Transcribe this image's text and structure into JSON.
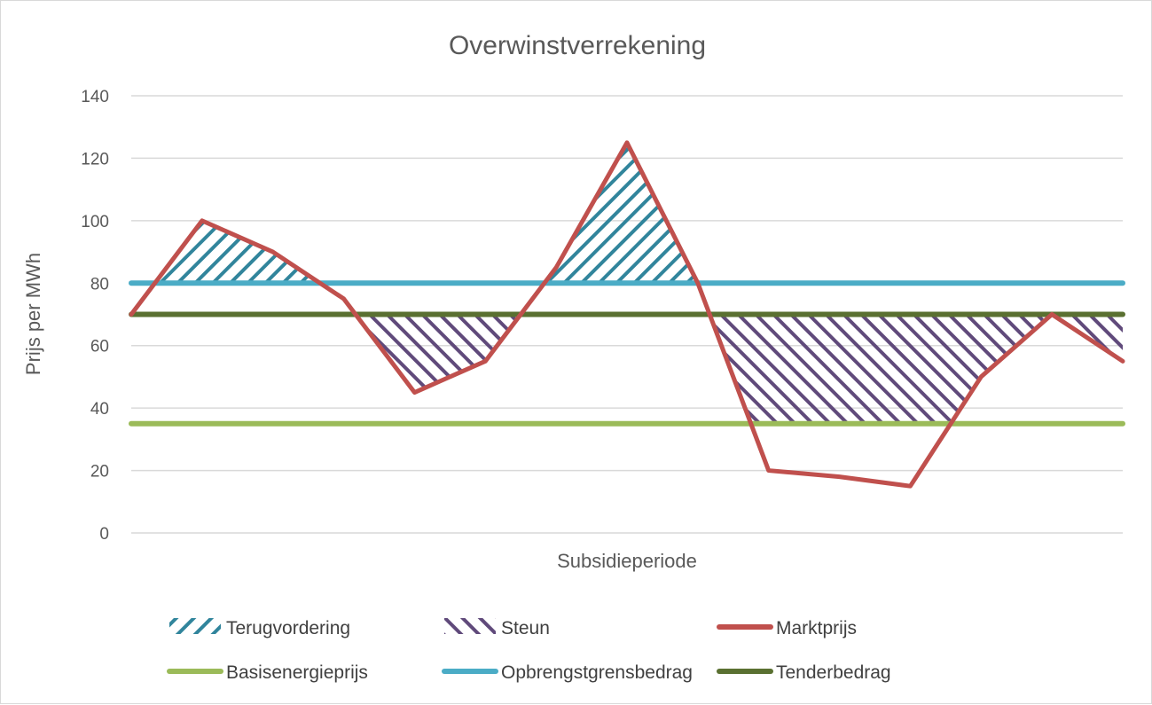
{
  "chart_data": {
    "type": "line",
    "title": "Overwinstverrekening",
    "xlabel": "Subsidieperiode",
    "ylabel": "Prijs per MWh",
    "ylim": [
      0,
      140
    ],
    "yticks": [
      0,
      20,
      40,
      60,
      80,
      100,
      120,
      140
    ],
    "grid": true,
    "legend_position": "bottom",
    "series": [
      {
        "name": "Marktprijs",
        "color": "#c0504d",
        "values": [
          70,
          100,
          90,
          75,
          45,
          55,
          85,
          125,
          80,
          20,
          18,
          15,
          50,
          70,
          55
        ]
      },
      {
        "name": "Basisenergieprijs",
        "color": "#9bbb59",
        "values": 35
      },
      {
        "name": "Opbrengstgrensbedrag",
        "color": "#4bacc6",
        "values": 80
      },
      {
        "name": "Tenderbedrag",
        "color": "#5a7031",
        "values": 70
      }
    ],
    "areas": [
      {
        "name": "Terugvordering",
        "color": "#31859c",
        "pattern": "wide upward diagonal",
        "between": "Marktprijs above Opbrengstgrensbedrag"
      },
      {
        "name": "Steun",
        "color": "#604a7b",
        "pattern": "wide downward diagonal",
        "between": "Tenderbedrag and Marktprijs, bounded below by Basisenergieprijs"
      }
    ],
    "legend": [
      "Terugvordering",
      "Steun",
      "Marktprijs",
      "Basisenergieprijs",
      "Opbrengstgrensbedrag",
      "Tenderbedrag"
    ]
  }
}
